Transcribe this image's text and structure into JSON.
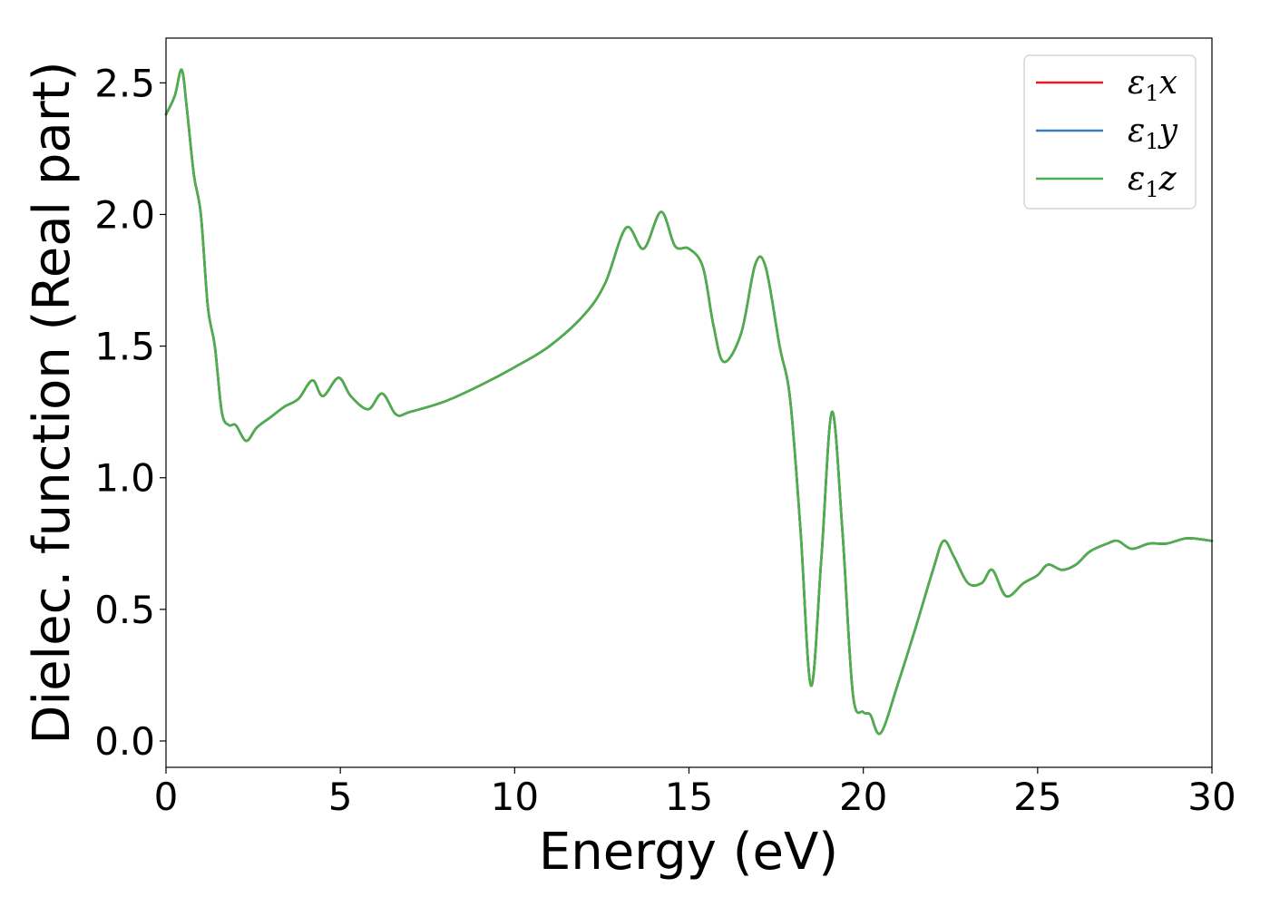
{
  "chart_data": {
    "type": "line",
    "title": "",
    "xlabel": "Energy (eV)",
    "ylabel": "Dielec. function (Real part)",
    "xlim": [
      0,
      30
    ],
    "ylim": [
      -0.1,
      2.67
    ],
    "xticks": [
      0,
      5,
      10,
      15,
      20,
      25,
      30
    ],
    "xtick_labels": [
      "0",
      "5",
      "10",
      "15",
      "20",
      "25",
      "30"
    ],
    "yticks": [
      0.0,
      0.5,
      1.0,
      1.5,
      2.0,
      2.5
    ],
    "ytick_labels": [
      "0.0",
      "0.5",
      "1.0",
      "1.5",
      "2.0",
      "2.5"
    ],
    "grid": false,
    "legend_position": "top-right",
    "legend": [
      {
        "base": "ε",
        "sub": "1",
        "suffix": "x",
        "color": "#e41a1c"
      },
      {
        "base": "ε",
        "sub": "1",
        "suffix": "y",
        "color": "#377eb8"
      },
      {
        "base": "ε",
        "sub": "1",
        "suffix": "z",
        "color": "#4daf4a"
      }
    ],
    "x": [
      0.0,
      0.25,
      0.45,
      0.6,
      0.8,
      1.0,
      1.2,
      1.4,
      1.6,
      1.8,
      2.0,
      2.3,
      2.6,
      3.0,
      3.4,
      3.8,
      4.2,
      4.5,
      4.95,
      5.3,
      5.8,
      6.2,
      6.6,
      7.0,
      8.0,
      9.0,
      10.0,
      11.0,
      12.0,
      12.6,
      13.2,
      13.7,
      14.2,
      14.6,
      15.0,
      15.4,
      15.7,
      16.0,
      16.5,
      16.9,
      17.2,
      17.6,
      17.9,
      18.2,
      18.5,
      18.8,
      19.1,
      19.4,
      19.7,
      20.0,
      20.2,
      20.5,
      21.0,
      21.5,
      22.0,
      22.3,
      22.6,
      23.0,
      23.4,
      23.7,
      24.1,
      24.6,
      25.0,
      25.3,
      25.7,
      26.1,
      26.5,
      27.0,
      27.3,
      27.7,
      28.2,
      28.7,
      29.3,
      30.0
    ],
    "series": [
      {
        "values": [
          2.38,
          2.45,
          2.55,
          2.4,
          2.15,
          2.0,
          1.65,
          1.5,
          1.25,
          1.2,
          1.2,
          1.14,
          1.19,
          1.23,
          1.27,
          1.3,
          1.37,
          1.31,
          1.38,
          1.31,
          1.26,
          1.32,
          1.24,
          1.25,
          1.29,
          1.35,
          1.42,
          1.5,
          1.62,
          1.74,
          1.95,
          1.87,
          2.01,
          1.88,
          1.87,
          1.8,
          1.58,
          1.44,
          1.55,
          1.81,
          1.8,
          1.5,
          1.3,
          0.8,
          0.21,
          0.7,
          1.25,
          0.8,
          0.18,
          0.11,
          0.1,
          0.03,
          0.22,
          0.43,
          0.65,
          0.76,
          0.7,
          0.6,
          0.6,
          0.65,
          0.55,
          0.6,
          0.63,
          0.67,
          0.65,
          0.67,
          0.72,
          0.75,
          0.76,
          0.73,
          0.75,
          0.75,
          0.77,
          0.76
        ]
      },
      {
        "values": [
          2.38,
          2.45,
          2.55,
          2.4,
          2.15,
          2.0,
          1.65,
          1.5,
          1.25,
          1.2,
          1.2,
          1.14,
          1.19,
          1.23,
          1.27,
          1.3,
          1.37,
          1.31,
          1.38,
          1.31,
          1.26,
          1.32,
          1.24,
          1.25,
          1.29,
          1.35,
          1.42,
          1.5,
          1.62,
          1.74,
          1.95,
          1.87,
          2.01,
          1.88,
          1.87,
          1.8,
          1.58,
          1.44,
          1.55,
          1.81,
          1.8,
          1.5,
          1.3,
          0.8,
          0.21,
          0.7,
          1.25,
          0.8,
          0.18,
          0.11,
          0.1,
          0.03,
          0.22,
          0.43,
          0.65,
          0.76,
          0.7,
          0.6,
          0.6,
          0.65,
          0.55,
          0.6,
          0.63,
          0.67,
          0.65,
          0.67,
          0.72,
          0.75,
          0.76,
          0.73,
          0.75,
          0.75,
          0.77,
          0.76
        ]
      },
      {
        "values": [
          2.38,
          2.45,
          2.55,
          2.4,
          2.15,
          2.0,
          1.65,
          1.5,
          1.25,
          1.2,
          1.2,
          1.14,
          1.19,
          1.23,
          1.27,
          1.3,
          1.37,
          1.31,
          1.38,
          1.31,
          1.26,
          1.32,
          1.24,
          1.25,
          1.29,
          1.35,
          1.42,
          1.5,
          1.62,
          1.74,
          1.95,
          1.87,
          2.01,
          1.88,
          1.87,
          1.8,
          1.58,
          1.44,
          1.55,
          1.81,
          1.8,
          1.5,
          1.3,
          0.8,
          0.21,
          0.7,
          1.25,
          0.8,
          0.18,
          0.11,
          0.1,
          0.03,
          0.22,
          0.43,
          0.65,
          0.76,
          0.7,
          0.6,
          0.6,
          0.65,
          0.55,
          0.6,
          0.63,
          0.67,
          0.65,
          0.67,
          0.72,
          0.75,
          0.76,
          0.73,
          0.75,
          0.75,
          0.77,
          0.76
        ]
      }
    ]
  }
}
